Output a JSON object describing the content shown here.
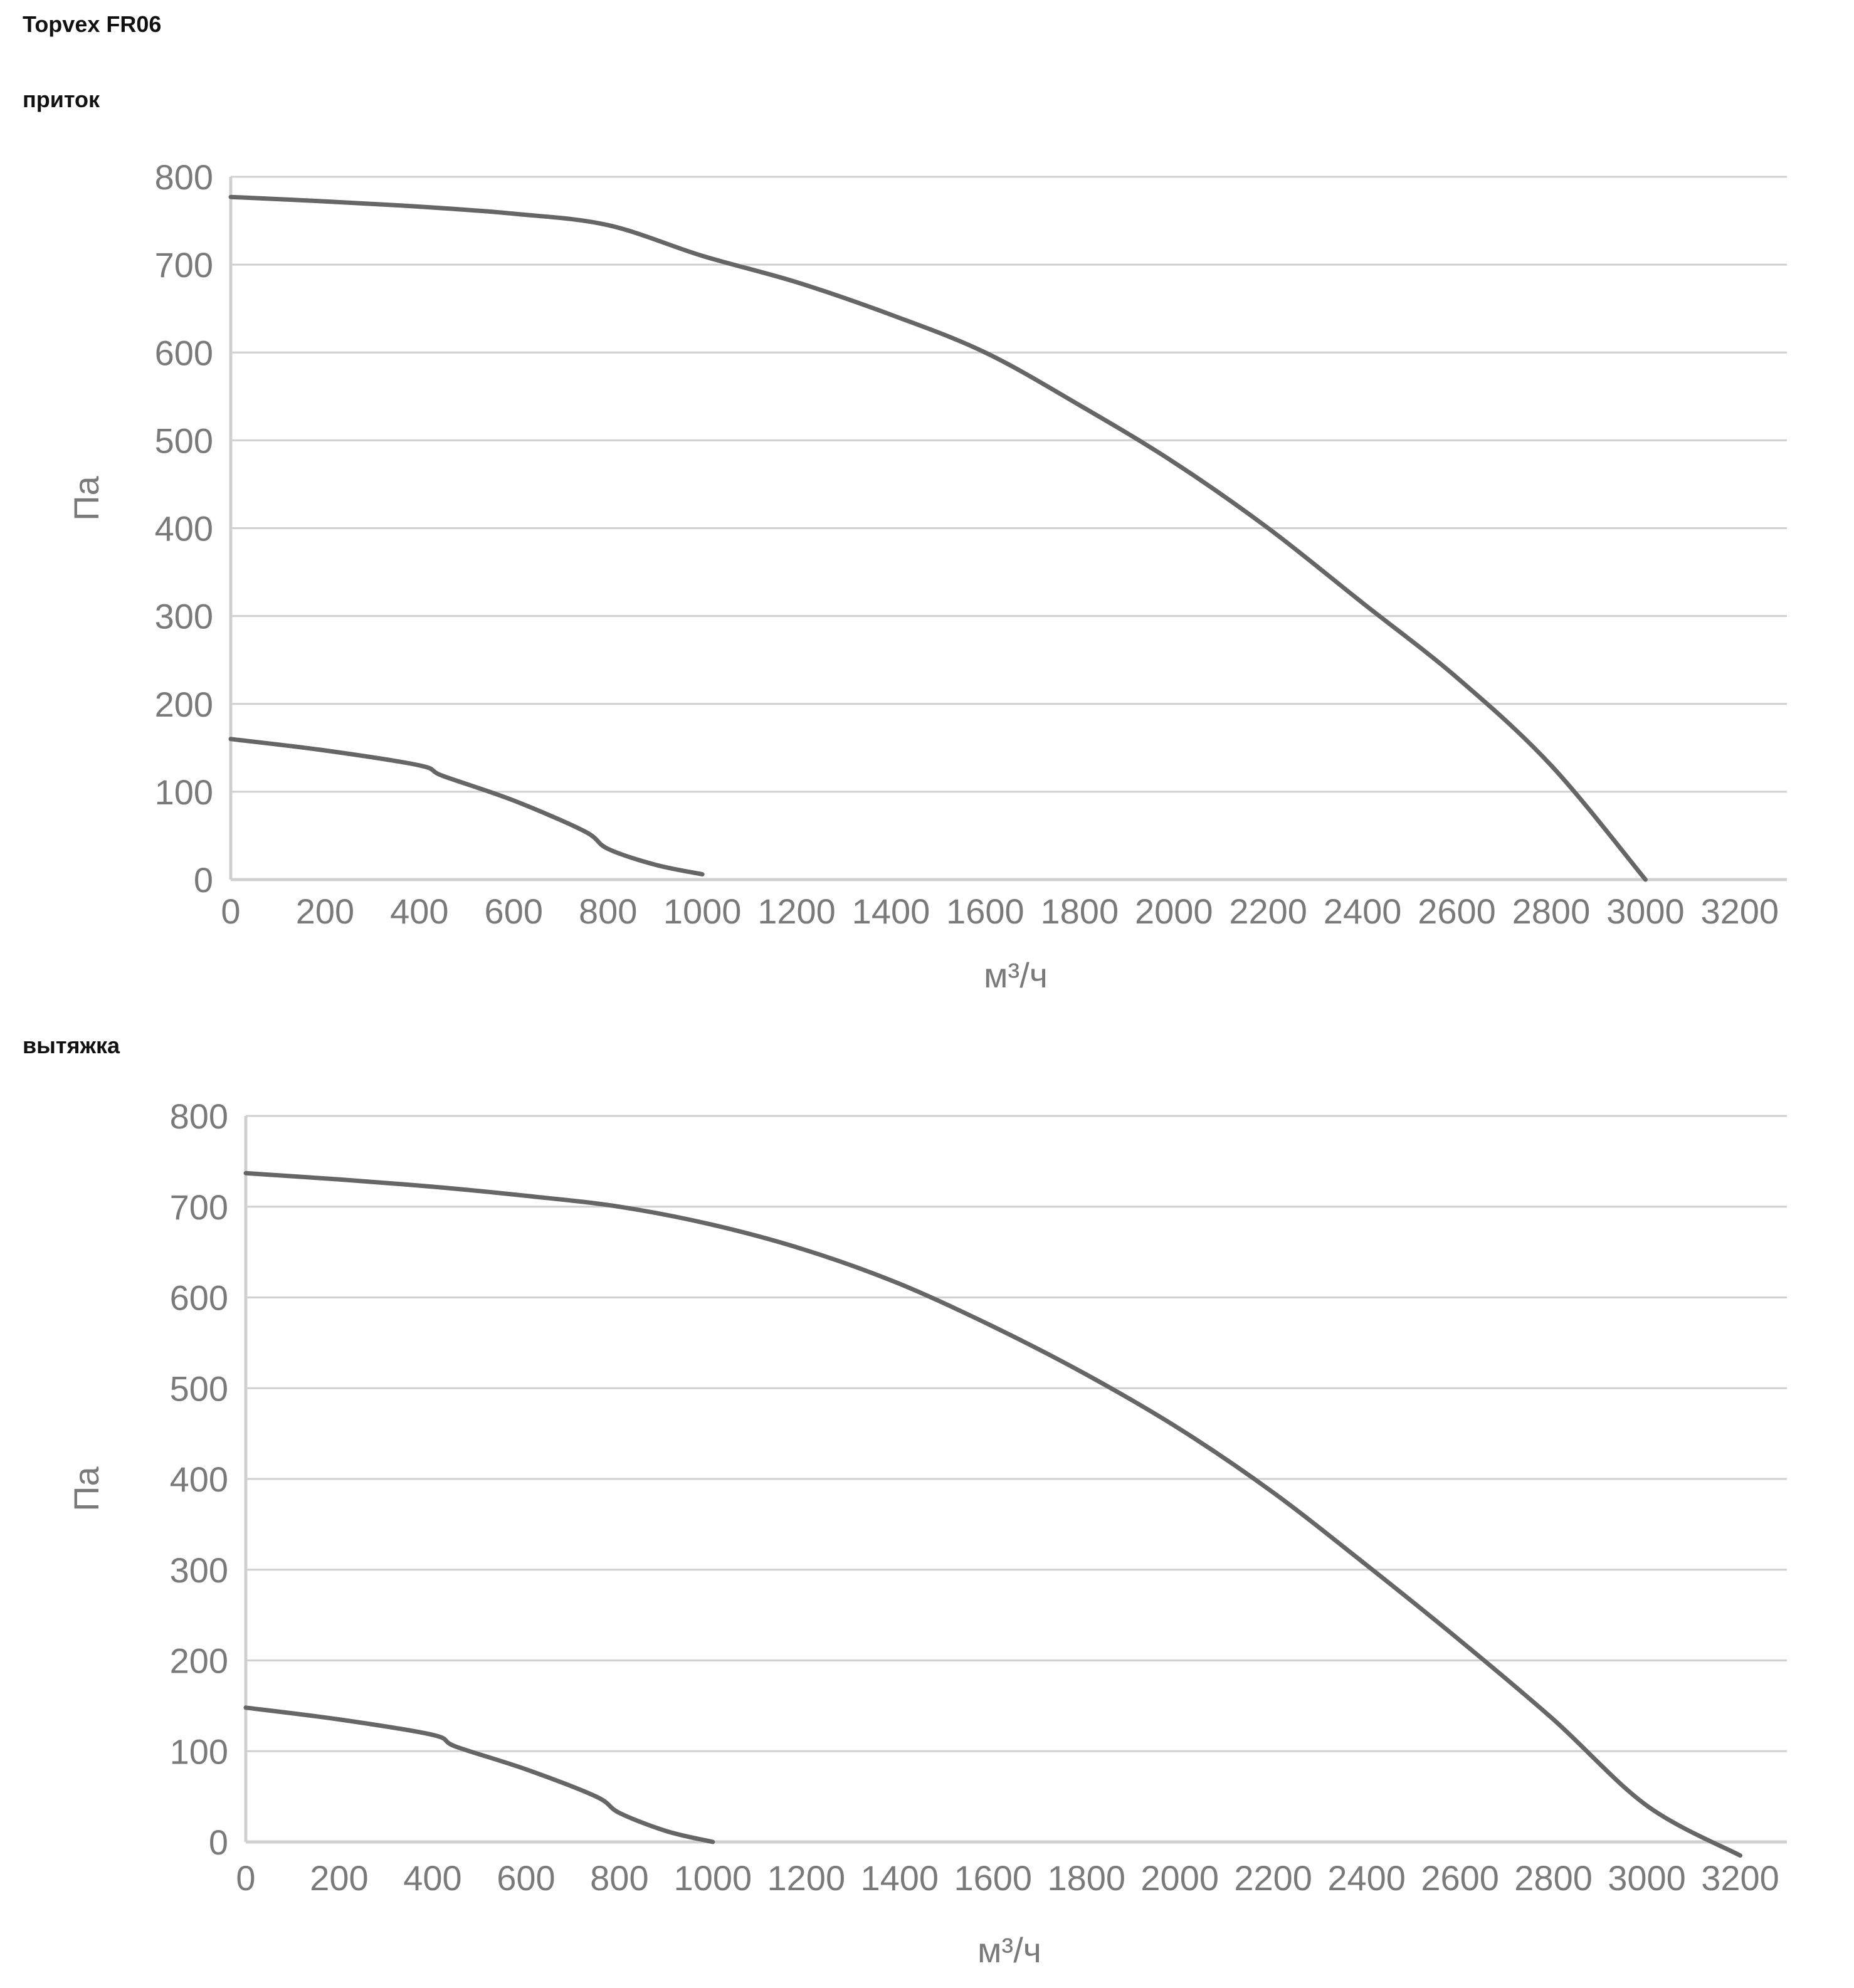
{
  "document": {
    "title": "Topvex FR06"
  },
  "chart_data": [
    {
      "type": "line",
      "title": "приток",
      "xlabel": "м³/ч",
      "ylabel": "Па",
      "x_ticks": [
        0,
        200,
        400,
        600,
        800,
        1000,
        1200,
        1400,
        1600,
        1800,
        2000,
        2200,
        2400,
        2600,
        2800,
        3000,
        3200
      ],
      "y_ticks": [
        0,
        100,
        200,
        300,
        400,
        500,
        600,
        700,
        800
      ],
      "xlim": [
        0,
        3300
      ],
      "ylim": [
        0,
        800
      ],
      "grid": true,
      "series": [
        {
          "color": "#666666",
          "x": [
            0,
            200,
            400,
            600,
            800,
            1000,
            1200,
            1400,
            1600,
            1800,
            2000,
            2200,
            2400,
            2600,
            2800,
            3000
          ],
          "y": [
            777,
            772,
            766,
            758,
            745,
            710,
            680,
            643,
            600,
            540,
            475,
            400,
            315,
            230,
            130,
            0
          ]
        },
        {
          "color": "#666666",
          "x": [
            0,
            200,
            400,
            450,
            600,
            750,
            800,
            900,
            1000
          ],
          "y": [
            160,
            147,
            130,
            118,
            90,
            55,
            35,
            17,
            6
          ]
        }
      ]
    },
    {
      "type": "line",
      "title": "вытяжка",
      "xlabel": "м³/ч",
      "ylabel": "Па",
      "x_ticks": [
        0,
        200,
        400,
        600,
        800,
        1000,
        1200,
        1400,
        1600,
        1800,
        2000,
        2200,
        2400,
        2600,
        2800,
        3000,
        3200
      ],
      "y_ticks": [
        0,
        100,
        200,
        300,
        400,
        500,
        600,
        700,
        800
      ],
      "xlim": [
        0,
        3300
      ],
      "ylim": [
        0,
        800
      ],
      "grid": true,
      "series": [
        {
          "color": "#666666",
          "x": [
            0,
            200,
            400,
            600,
            800,
            1000,
            1200,
            1400,
            1600,
            1800,
            2000,
            2200,
            2400,
            2600,
            2800,
            3000,
            3200
          ],
          "y": [
            737,
            730,
            722,
            712,
            700,
            680,
            652,
            615,
            568,
            515,
            455,
            385,
            305,
            222,
            135,
            40,
            -15
          ]
        },
        {
          "color": "#666666",
          "x": [
            0,
            200,
            400,
            450,
            600,
            750,
            800,
            900,
            1000
          ],
          "y": [
            148,
            135,
            118,
            105,
            80,
            50,
            32,
            12,
            0
          ]
        }
      ]
    }
  ]
}
